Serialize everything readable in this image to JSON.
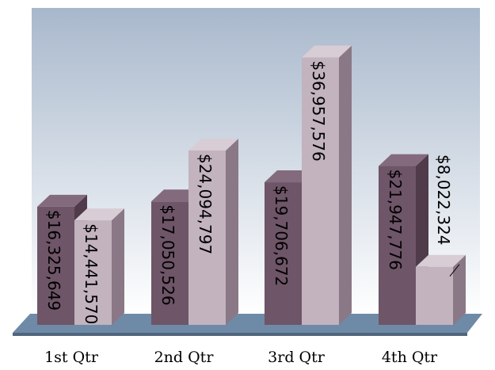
{
  "chart_data": {
    "type": "bar",
    "categories": [
      "1st Qtr",
      "2nd Qtr",
      "3rd Qtr",
      "4th Qtr"
    ],
    "series": [
      {
        "values": [
          16325649,
          17050526,
          19706672,
          21947776
        ],
        "labels": [
          "$16,325,649",
          "$17,050,526",
          "$19,706,672",
          "$21,947,776"
        ]
      },
      {
        "values": [
          14441570,
          24094797,
          36957576,
          8022324
        ],
        "labels": [
          "$14,441,570",
          "$24,094,797",
          "$36,957,576",
          "$8,022,324"
        ]
      }
    ],
    "ylim": [
      0,
      38000000
    ],
    "grid": false,
    "legend": "none",
    "colors": {
      "series1_front": "#6e5568",
      "series1_side": "#4f3b4a",
      "series1_top": "#846a7d",
      "series2_front": "#c2b3bf",
      "series2_side": "#8a7886",
      "series2_top": "#d8ccd5",
      "wall_top": "#a8b8cc",
      "wall_bottom": "#ffffff",
      "floor": "#6e8aa6",
      "floor_edge": "#50657c"
    }
  }
}
